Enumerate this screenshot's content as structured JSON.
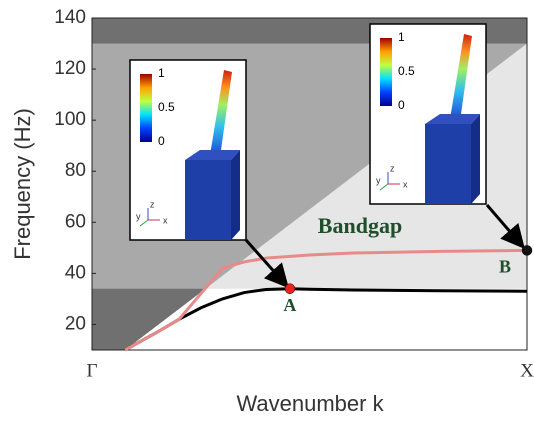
{
  "chart_data": {
    "type": "line",
    "ylabel": "Frequency (Hz)",
    "xlabel": "Wavenumber k",
    "xlim": [
      0,
      1
    ],
    "xticks": [
      {
        "value": 0,
        "label": "Γ"
      },
      {
        "value": 1,
        "label": "X"
      }
    ],
    "ylim": [
      10,
      140
    ],
    "yticks": [
      20,
      40,
      60,
      80,
      100,
      120,
      140
    ],
    "bands": [
      [
        130,
        140
      ],
      [
        10,
        34
      ]
    ],
    "series": [
      {
        "color": "#000000",
        "x": [
          0.076,
          0.15,
          0.2,
          0.25,
          0.3,
          0.35,
          0.4,
          0.455,
          0.5,
          0.6,
          0.8,
          1
        ],
        "values": [
          10,
          17,
          22,
          26.5,
          30,
          32.5,
          33.7,
          34,
          33.8,
          33.5,
          33.2,
          33
        ]
      },
      {
        "color": "#e88a8a",
        "x": [
          0.076,
          0.15,
          0.2,
          0.25,
          0.3,
          0.35,
          0.4,
          0.5,
          0.6,
          0.8,
          1
        ],
        "values": [
          10,
          17,
          22,
          32,
          42,
          44.5,
          46,
          47.2,
          48,
          48.6,
          49
        ]
      }
    ],
    "points": [
      {
        "label": "A",
        "x": 0.455,
        "value": 34,
        "color": "#e8221c"
      },
      {
        "label": "B",
        "x": 1,
        "value": 49,
        "color": "#111111"
      }
    ],
    "annotation": "Bandgap",
    "insets": [
      {
        "colorbar_ticks": [
          1,
          0.5,
          0
        ],
        "axes": [
          "y",
          "z",
          "x"
        ]
      },
      {
        "colorbar_ticks": [
          1,
          0.5,
          0
        ],
        "axes": [
          "y",
          "z",
          "x"
        ]
      }
    ]
  }
}
